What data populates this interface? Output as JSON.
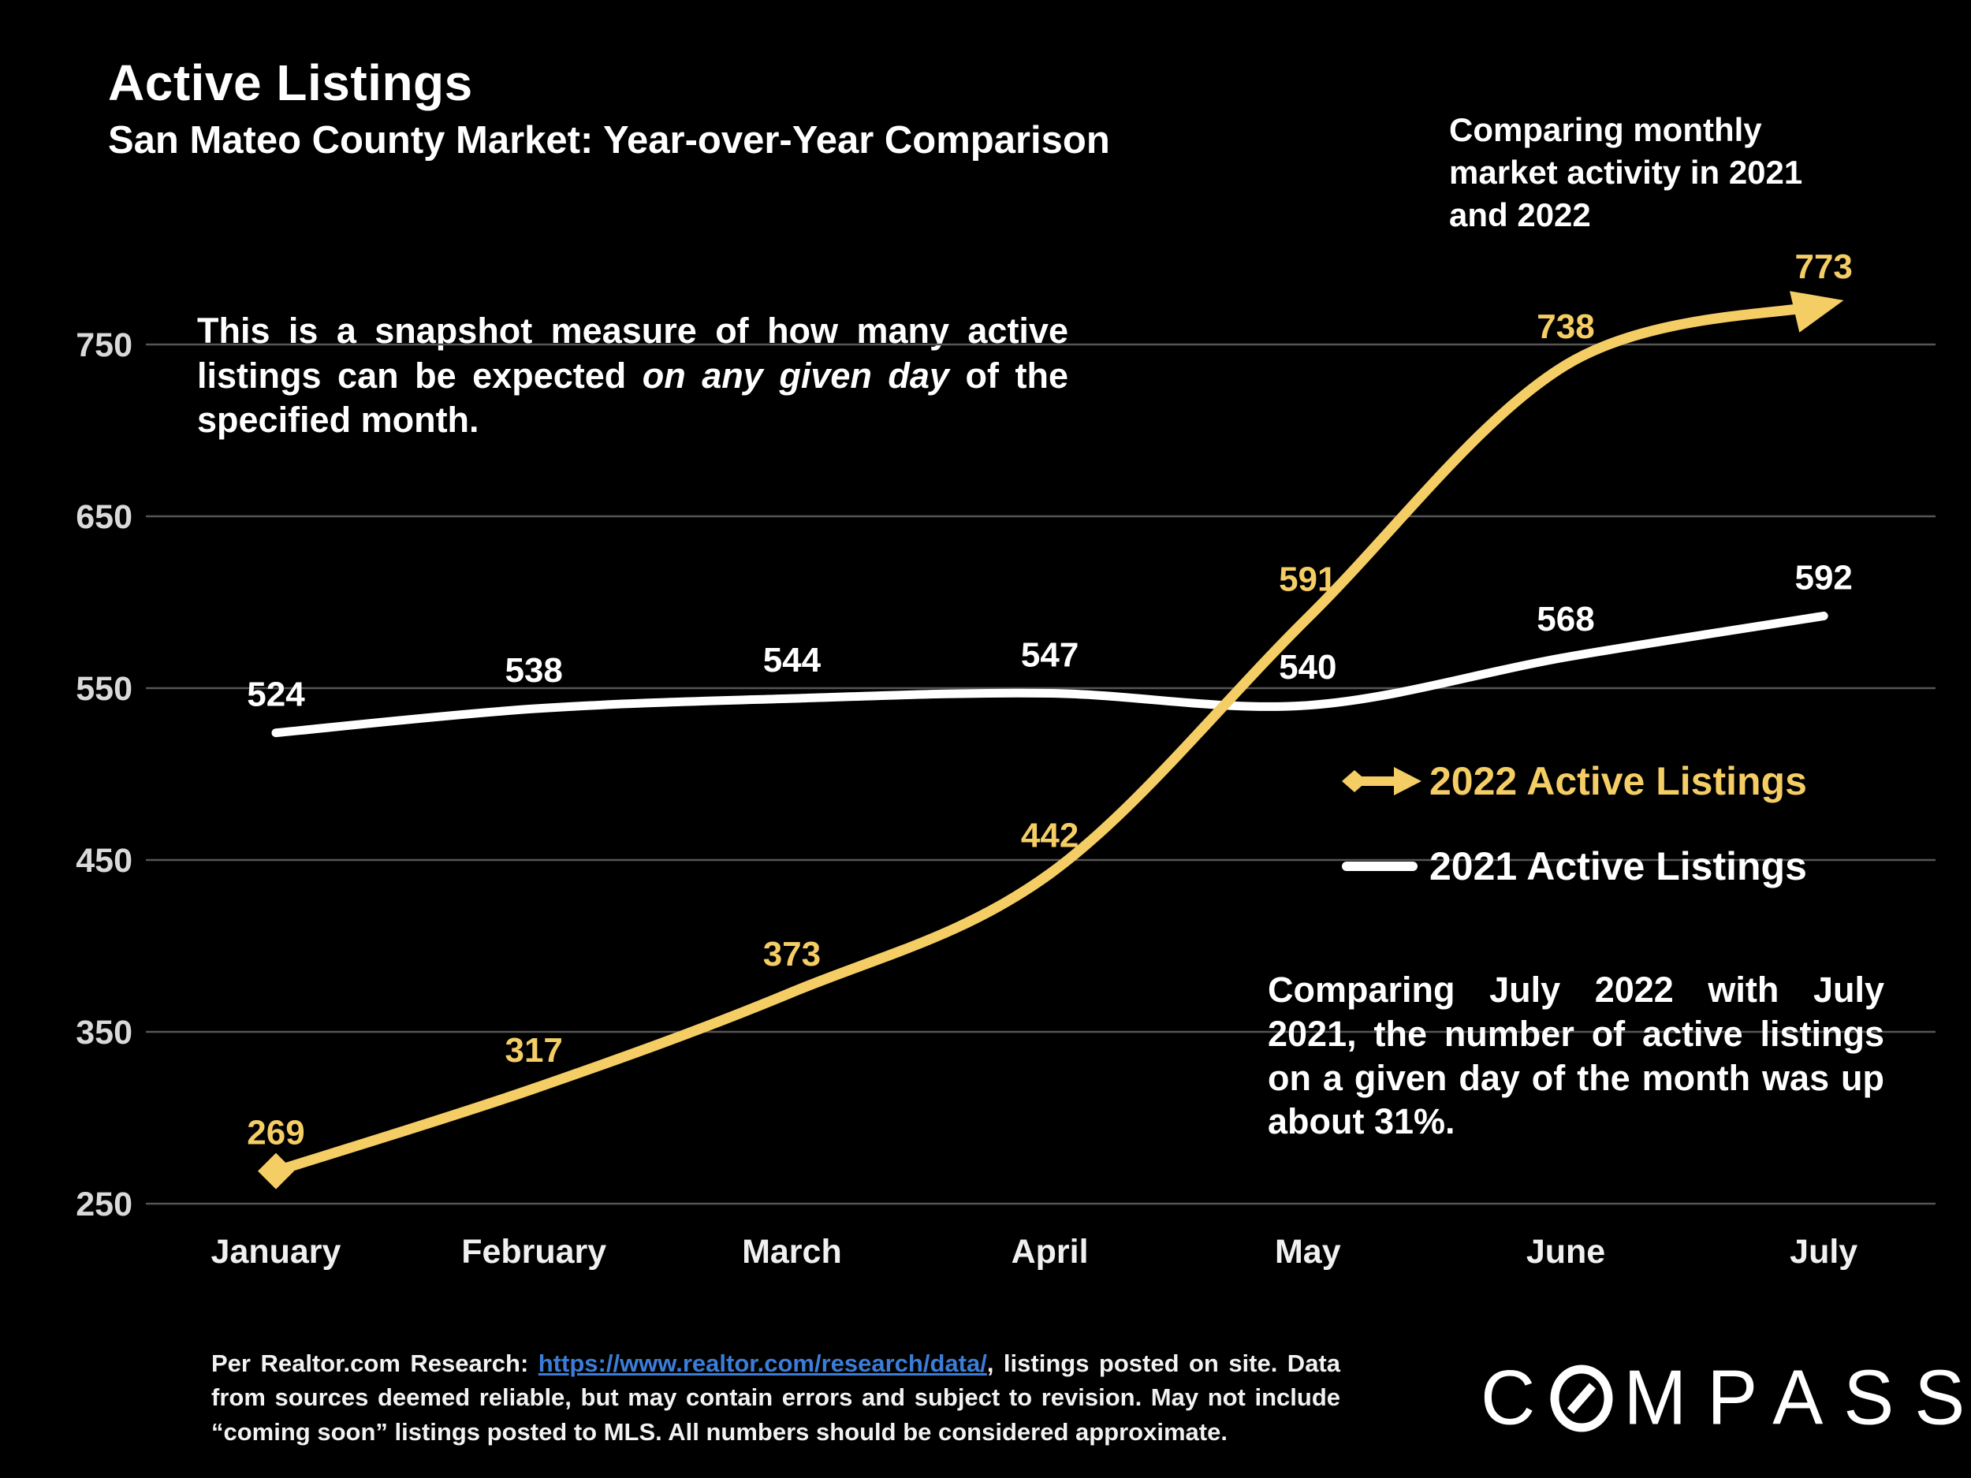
{
  "header": {
    "title": "Active Listings",
    "subtitle": "San Mateo County Market: Year-over-Year Comparison",
    "note": "Comparing monthly market activity in 2021 and 2022"
  },
  "annotation": {
    "pre": "This is a snapshot measure of how many active listings can be expected ",
    "emphasis": "on any given day",
    "post": " of the specified month."
  },
  "legend": {
    "items": [
      {
        "label": "2022 Active Listings",
        "color": "#F5CD65"
      },
      {
        "label": "2021 Active Listings",
        "color": "#FFFFFF"
      }
    ]
  },
  "callout": "Comparing July 2022 with July 2021, the number of active listings on a given day of the month was up about 31%.",
  "footer": {
    "pre": "Per Realtor.com Research: ",
    "link": "https://www.realtor.com/research/data/",
    "post": ", listings posted on site. Data from sources deemed reliable, but may contain errors and subject to revision. May not include “coming soon” listings posted to MLS. All numbers should be considered approximate."
  },
  "logo": {
    "part1": "C",
    "part2": "MPASS"
  },
  "chart_data": {
    "type": "line",
    "title": "Active Listings — San Mateo County Market: Year-over-Year Comparison",
    "categories": [
      "January",
      "February",
      "March",
      "April",
      "May",
      "June",
      "July"
    ],
    "series": [
      {
        "name": "2021 Active Listings",
        "color": "#FFFFFF",
        "style": "plain",
        "values": [
          524,
          538,
          544,
          547,
          540,
          568,
          592
        ]
      },
      {
        "name": "2022 Active Listings",
        "color": "#F5CD65",
        "style": "arrow-ends",
        "values": [
          269,
          317,
          373,
          442,
          591,
          738,
          773
        ]
      }
    ],
    "xlabel": "",
    "ylabel": "",
    "yticks": [
      250,
      350,
      450,
      550,
      650,
      750
    ],
    "ylim": [
      250,
      800
    ],
    "grid": true,
    "gridline_color": "#555555",
    "data_labels": true,
    "legend_position": "middle-right"
  }
}
